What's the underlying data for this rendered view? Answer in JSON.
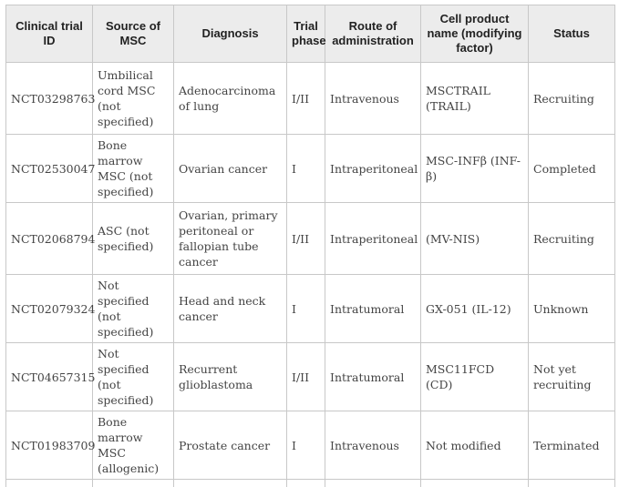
{
  "table": {
    "headers": [
      "Clinical trial ID",
      "Source of MSC",
      "Diagnosis",
      "Trial phase",
      "Route of administration",
      "Cell product name (modifying factor)",
      "Status"
    ],
    "rows": [
      [
        "NCT03298763",
        "Umbilical cord MSC (not specified)",
        "Adenocarcinoma of lung",
        "I/II",
        "Intravenous",
        "MSCTRAIL (TRAIL)",
        "Recruiting"
      ],
      [
        "NCT02530047",
        "Bone marrow MSC (not specified)",
        "Ovarian cancer",
        "I",
        "Intraperitoneal",
        "MSC-INFβ (INF-β)",
        "Completed"
      ],
      [
        "NCT02068794",
        "ASC (not specified)",
        "Ovarian, primary peritoneal or fallopian tube cancer",
        "I/II",
        "Intraperitoneal",
        "(MV-NIS)",
        "Recruiting"
      ],
      [
        "NCT02079324",
        "Not specified (not specified)",
        "Head and neck cancer",
        "I",
        "Intratumoral",
        "GX-051 (IL-12)",
        "Unknown"
      ],
      [
        "NCT04657315",
        "Not specified (not specified)",
        "Recurrent glioblastoma",
        "I/II",
        "Intratumoral",
        "MSC11FCD (CD)",
        "Not yet recruiting"
      ],
      [
        "NCT01983709",
        "Bone marrow MSC (allogenic)",
        "Prostate cancer",
        "I",
        "Intravenous",
        "Not modified",
        "Terminated"
      ]
    ]
  }
}
